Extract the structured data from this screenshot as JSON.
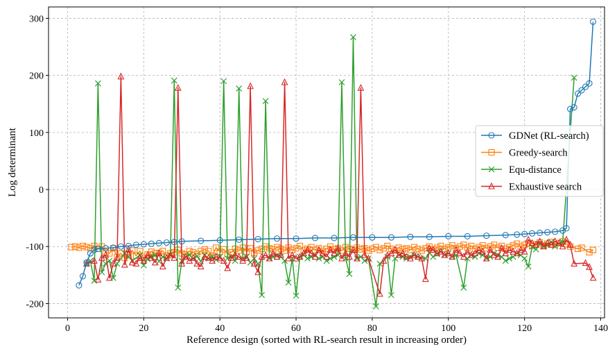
{
  "chart_data": {
    "type": "line",
    "title": "",
    "xlabel": "Reference design (sorted with RL-search result in increasing order)",
    "ylabel": "Log determinant",
    "xlim": [
      -5,
      141
    ],
    "ylim": [
      -225,
      320
    ],
    "xticks": [
      0,
      20,
      40,
      60,
      80,
      100,
      120,
      140
    ],
    "yticks": [
      -200,
      -100,
      0,
      100,
      200,
      300
    ],
    "grid": true,
    "legend_position": "center-right",
    "series": [
      {
        "name": "GDNet (RL-search)",
        "color": "#1f77b4",
        "marker": "circle",
        "x": [
          3,
          4,
          5,
          6,
          7,
          8,
          10,
          12,
          14,
          16,
          18,
          20,
          22,
          24,
          26,
          28,
          30,
          35,
          40,
          45,
          50,
          55,
          60,
          65,
          70,
          75,
          80,
          85,
          90,
          95,
          100,
          105,
          110,
          115,
          118,
          120,
          122,
          124,
          126,
          128,
          130,
          131,
          132,
          133,
          134,
          135,
          136,
          137,
          138
        ],
        "y": [
          -168,
          -152,
          -128,
          -112,
          -106,
          -104,
          -103,
          -102,
          -100,
          -99,
          -97,
          -96,
          -95,
          -94,
          -93,
          -92,
          -91,
          -90,
          -89,
          -88,
          -87,
          -86,
          -86,
          -85,
          -85,
          -84,
          -84,
          -84,
          -83,
          -83,
          -82,
          -82,
          -81,
          -80,
          -79,
          -78,
          -77,
          -76,
          -75,
          -74,
          -72,
          -68,
          141,
          144,
          168,
          174,
          180,
          186,
          294
        ]
      },
      {
        "name": "Greedy-search",
        "color": "#ff7f0e",
        "marker": "square",
        "x": [
          1,
          2,
          3,
          4,
          5,
          6,
          7,
          8,
          9,
          10,
          11,
          12,
          13,
          14,
          15,
          16,
          17,
          18,
          19,
          20,
          21,
          22,
          23,
          24,
          25,
          26,
          27,
          28,
          29,
          30,
          31,
          32,
          33,
          34,
          35,
          36,
          37,
          38,
          39,
          40,
          41,
          42,
          43,
          44,
          45,
          46,
          47,
          48,
          49,
          50,
          51,
          52,
          53,
          54,
          55,
          56,
          57,
          58,
          59,
          60,
          61,
          62,
          63,
          64,
          65,
          66,
          67,
          68,
          69,
          70,
          71,
          72,
          73,
          74,
          75,
          76,
          77,
          78,
          79,
          80,
          81,
          82,
          83,
          84,
          85,
          86,
          87,
          88,
          89,
          90,
          91,
          92,
          93,
          94,
          95,
          96,
          97,
          98,
          99,
          100,
          101,
          102,
          103,
          104,
          105,
          106,
          107,
          108,
          109,
          110,
          111,
          112,
          113,
          114,
          115,
          116,
          117,
          118,
          119,
          120,
          121,
          122,
          123,
          124,
          125,
          126,
          127,
          128,
          129,
          130,
          131,
          132,
          134,
          135,
          137,
          138
        ],
        "y": [
          -101,
          -100,
          -102,
          -99,
          -101,
          -103,
          -99,
          -104,
          -100,
          -110,
          -112,
          -103,
          -118,
          -112,
          -120,
          -115,
          -107,
          -116,
          -108,
          -120,
          -114,
          -109,
          -112,
          -111,
          -108,
          -116,
          -112,
          -110,
          -106,
          -112,
          -114,
          -108,
          -110,
          -113,
          -108,
          -105,
          -108,
          -116,
          -102,
          -109,
          -105,
          -113,
          -110,
          -104,
          -107,
          -102,
          -109,
          -103,
          -111,
          -107,
          -104,
          -100,
          -103,
          -105,
          -101,
          -104,
          -107,
          -102,
          -106,
          -103,
          -99,
          -107,
          -104,
          -101,
          -106,
          -103,
          -108,
          -104,
          -100,
          -105,
          -103,
          -107,
          -101,
          -104,
          -106,
          -102,
          -105,
          -103,
          -107,
          -104,
          -101,
          -106,
          -103,
          -99,
          -104,
          -107,
          -102,
          -105,
          -103,
          -106,
          -101,
          -104,
          -107,
          -103,
          -100,
          -105,
          -102,
          -99,
          -104,
          -101,
          -98,
          -103,
          -100,
          -97,
          -102,
          -99,
          -104,
          -101,
          -98,
          -103,
          -100,
          -97,
          -102,
          -99,
          -104,
          -101,
          -98,
          -95,
          -100,
          -97,
          -94,
          -99,
          -96,
          -93,
          -98,
          -95,
          -92,
          -97,
          -94,
          -91,
          -96,
          -100,
          -104,
          -102,
          -110,
          -106
        ]
      },
      {
        "name": "Equ-distance",
        "color": "#2ca02c",
        "marker": "x",
        "x": [
          5,
          6,
          7,
          8,
          9,
          10,
          11,
          12,
          13,
          15,
          16,
          17,
          19,
          20,
          21,
          22,
          23,
          24,
          25,
          26,
          27,
          28,
          29,
          30,
          31,
          32,
          33,
          34,
          35,
          36,
          37,
          38,
          39,
          40,
          41,
          42,
          43,
          44,
          45,
          46,
          47,
          48,
          49,
          50,
          51,
          52,
          53,
          54,
          55,
          56,
          57,
          58,
          59,
          60,
          61,
          62,
          63,
          64,
          65,
          66,
          67,
          68,
          69,
          70,
          71,
          72,
          73,
          74,
          75,
          76,
          77,
          78,
          79,
          81,
          82,
          84,
          85,
          86,
          87,
          88,
          89,
          90,
          91,
          92,
          94,
          95,
          96,
          97,
          98,
          99,
          100,
          101,
          102,
          104,
          105,
          106,
          107,
          108,
          109,
          110,
          111,
          112,
          113,
          114,
          115,
          116,
          117,
          118,
          119,
          120,
          121,
          122,
          123,
          124,
          125,
          126,
          127,
          128,
          129,
          130,
          133
        ],
        "y": [
          -130,
          -125,
          -160,
          186,
          -145,
          -130,
          -125,
          -155,
          -130,
          -112,
          -118,
          -125,
          -115,
          -133,
          -122,
          -118,
          -115,
          -126,
          -118,
          -121,
          -115,
          191,
          -172,
          -125,
          -118,
          -115,
          -121,
          -117,
          -126,
          -115,
          -121,
          -118,
          -123,
          -118,
          190,
          -121,
          -118,
          -125,
          177,
          -121,
          -118,
          -128,
          -121,
          -130,
          -185,
          155,
          -121,
          -118,
          -115,
          -118,
          -125,
          -163,
          -121,
          -186,
          -118,
          -115,
          -121,
          -118,
          -115,
          -121,
          -118,
          -125,
          -121,
          -118,
          -115,
          188,
          -121,
          -148,
          267,
          -121,
          -118,
          -125,
          -121,
          -205,
          -130,
          -118,
          -185,
          -121,
          -115,
          -118,
          -121,
          -118,
          -115,
          -118,
          -121,
          -111,
          -118,
          -113,
          -109,
          -115,
          -112,
          -118,
          -115,
          -172,
          -121,
          -115,
          -118,
          -112,
          -115,
          -121,
          -118,
          -112,
          -115,
          -118,
          -125,
          -121,
          -118,
          -112,
          -115,
          -121,
          -135,
          -100,
          -105,
          -95,
          -100,
          -97,
          -92,
          -100,
          -95,
          -92,
          196
        ]
      },
      {
        "name": "Exhaustive search",
        "color": "#d62728",
        "marker": "triangle",
        "x": [
          5,
          7,
          8,
          9,
          10,
          11,
          12,
          13,
          14,
          15,
          16,
          17,
          18,
          19,
          20,
          21,
          22,
          23,
          24,
          25,
          26,
          27,
          28,
          29,
          30,
          31,
          32,
          33,
          34,
          35,
          36,
          37,
          38,
          39,
          40,
          41,
          42,
          43,
          44,
          45,
          46,
          47,
          48,
          49,
          50,
          51,
          52,
          53,
          54,
          55,
          56,
          57,
          58,
          59,
          60,
          61,
          62,
          63,
          64,
          65,
          66,
          67,
          68,
          69,
          70,
          71,
          72,
          73,
          74,
          75,
          76,
          77,
          78,
          79,
          82,
          83,
          84,
          85,
          86,
          87,
          88,
          89,
          90,
          91,
          92,
          93,
          94,
          95,
          96,
          97,
          98,
          99,
          100,
          101,
          102,
          103,
          104,
          105,
          106,
          107,
          108,
          109,
          110,
          111,
          112,
          113,
          114,
          115,
          116,
          117,
          118,
          119,
          120,
          121,
          122,
          123,
          124,
          125,
          126,
          127,
          128,
          129,
          130,
          131,
          132,
          133,
          136,
          137,
          138
        ],
        "y": [
          -130,
          -125,
          -158,
          -120,
          -115,
          -155,
          -130,
          -120,
          198,
          -132,
          -105,
          -128,
          -130,
          -120,
          -125,
          -115,
          -120,
          -128,
          -112,
          -135,
          -120,
          -115,
          -120,
          178,
          -130,
          -118,
          -125,
          -120,
          -130,
          -135,
          -118,
          -120,
          -125,
          -118,
          -120,
          -125,
          -138,
          -120,
          -115,
          -118,
          -125,
          -120,
          181,
          -130,
          -145,
          -118,
          -115,
          -121,
          -112,
          -118,
          -115,
          188,
          -121,
          -115,
          -121,
          -118,
          -112,
          -106,
          -112,
          -118,
          -106,
          -112,
          -118,
          -106,
          -112,
          -103,
          -121,
          -112,
          -118,
          -106,
          -121,
          178,
          -115,
          -121,
          -183,
          -125,
          -115,
          -112,
          -106,
          -115,
          -112,
          -118,
          -121,
          -115,
          -118,
          -121,
          -157,
          -103,
          -106,
          -112,
          -109,
          -115,
          -112,
          -118,
          -106,
          -112,
          -118,
          -109,
          -115,
          -112,
          -106,
          -109,
          -121,
          -106,
          -115,
          -118,
          -103,
          -112,
          -106,
          -109,
          -112,
          -106,
          -109,
          -88,
          -94,
          -97,
          -91,
          -100,
          -94,
          -97,
          -91,
          -94,
          -100,
          -88,
          -97,
          -130,
          -129,
          -136,
          -155
        ]
      }
    ]
  }
}
